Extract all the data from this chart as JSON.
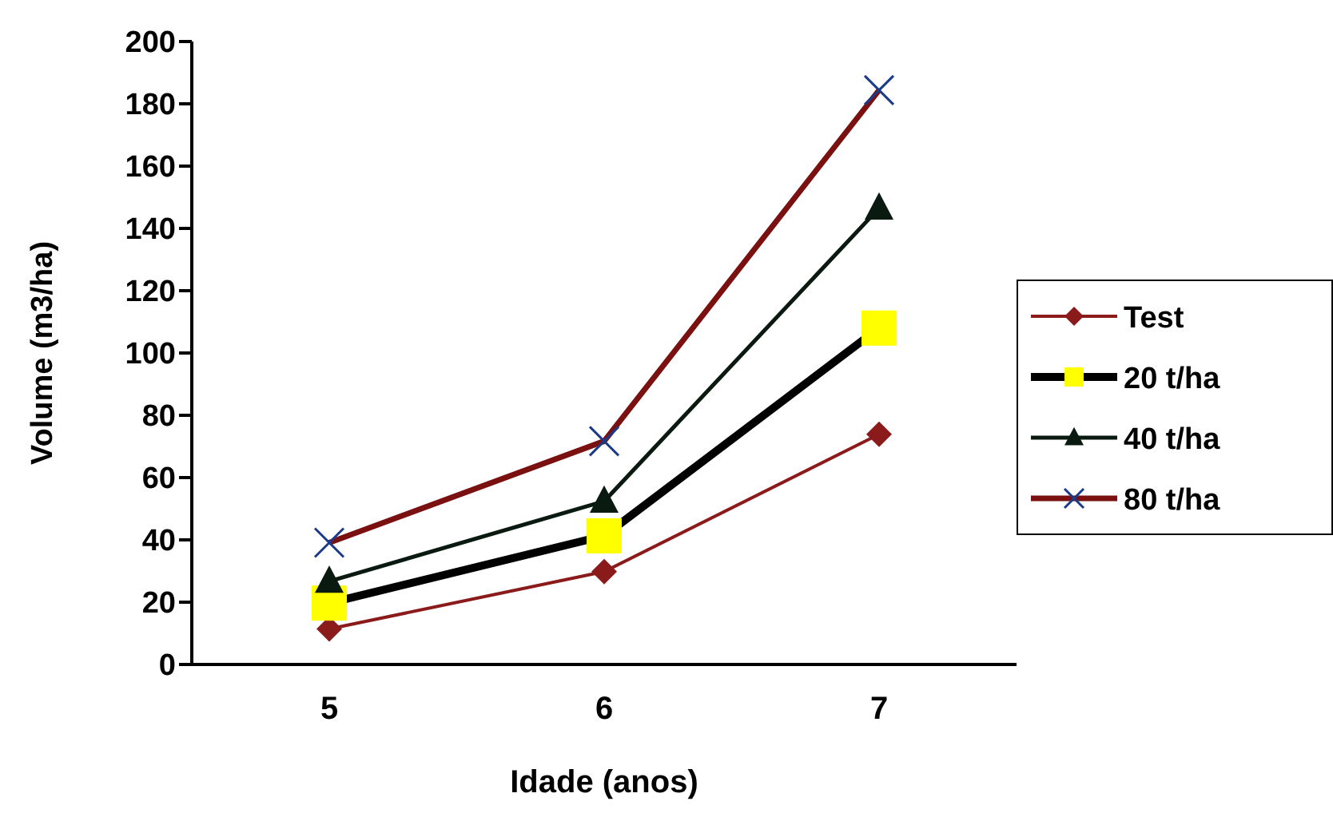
{
  "chart_data": {
    "type": "line",
    "xlabel": "Idade (anos)",
    "ylabel": "Volume (m3/ha)",
    "categories": [
      "5",
      "6",
      "7"
    ],
    "ylim": [
      0,
      200
    ],
    "yticks": [
      0,
      20,
      40,
      60,
      80,
      100,
      120,
      140,
      160,
      180,
      200
    ],
    "grid": false,
    "legend": "right",
    "line_style": "solid",
    "series": [
      {
        "name": "Test",
        "color": "#8b1a1a",
        "marker": "diamond",
        "values": [
          11.4,
          29.8,
          73.9
        ]
      },
      {
        "name": "20 t/ha",
        "color": "#000000",
        "marker": "square",
        "colors": [
          "#ffff00",
          "#ffff00",
          "#ffff00"
        ],
        "values": [
          19.7,
          41.3,
          108
        ]
      },
      {
        "name": "40 t/ha",
        "color": "#0a1a10",
        "marker": "triangle",
        "values": [
          26.7,
          52.4,
          146.5
        ]
      },
      {
        "name": "80 t/ha",
        "color": "#7a1010",
        "marker": "cross",
        "colors": [
          "#1a3a8a",
          "#1a3a8a",
          "#1a3a8a"
        ],
        "values": [
          39.1,
          71.7,
          184.4
        ]
      }
    ]
  }
}
